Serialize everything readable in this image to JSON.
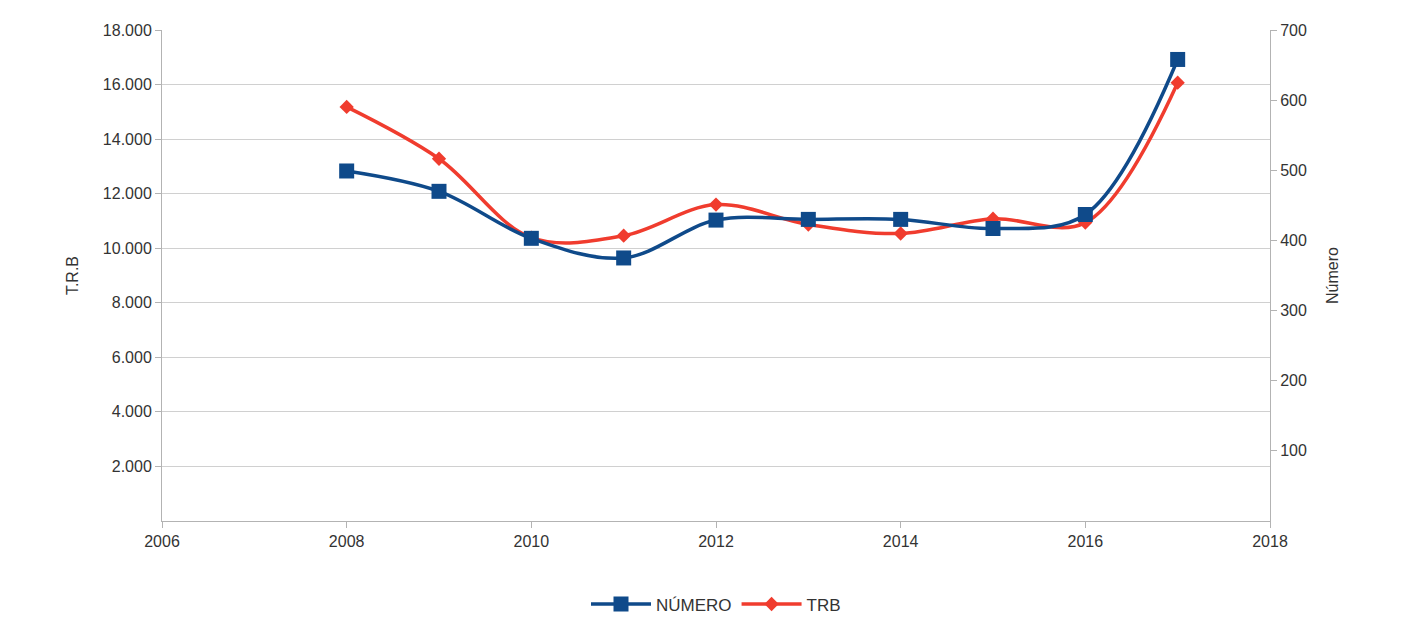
{
  "chart_data": {
    "type": "line",
    "x": [
      2008,
      2009,
      2010,
      2011,
      2012,
      2013,
      2014,
      2015,
      2016,
      2017
    ],
    "series": [
      {
        "name": "NÚMERO",
        "color": "#0f4a8a",
        "marker": "square",
        "line_style": "smooth",
        "axis": "y2",
        "values": [
          499,
          470,
          403,
          375,
          429,
          430,
          430,
          417,
          437,
          658
        ]
      },
      {
        "name": "TRB",
        "color": "#f03c2e",
        "marker": "diamond",
        "line_style": "smooth",
        "values": [
          15180,
          13280,
          10390,
          10460,
          11600,
          10870,
          10540,
          11080,
          10940,
          16070
        ]
      }
    ],
    "y_label": "T.R.B",
    "y2_label": "Número",
    "xlim": [
      2006,
      2018
    ],
    "xticks": [
      2006,
      2008,
      2010,
      2012,
      2014,
      2016,
      2018
    ],
    "ylim": [
      0,
      18000
    ],
    "yticks": [
      {
        "value": 2000,
        "label": "2.000"
      },
      {
        "value": 4000,
        "label": "4.000"
      },
      {
        "value": 6000,
        "label": "6.000"
      },
      {
        "value": 8000,
        "label": "8.000"
      },
      {
        "value": 10000,
        "label": "10.000"
      },
      {
        "value": 12000,
        "label": "12.000"
      },
      {
        "value": 14000,
        "label": "14.000"
      },
      {
        "value": 16000,
        "label": "16.000"
      },
      {
        "value": 18000,
        "label": "18.000"
      }
    ],
    "y2lim": [
      0,
      700
    ],
    "y2ticks": [
      100,
      200,
      300,
      400,
      500,
      600,
      700
    ],
    "grid": true,
    "legend": "bottom"
  }
}
